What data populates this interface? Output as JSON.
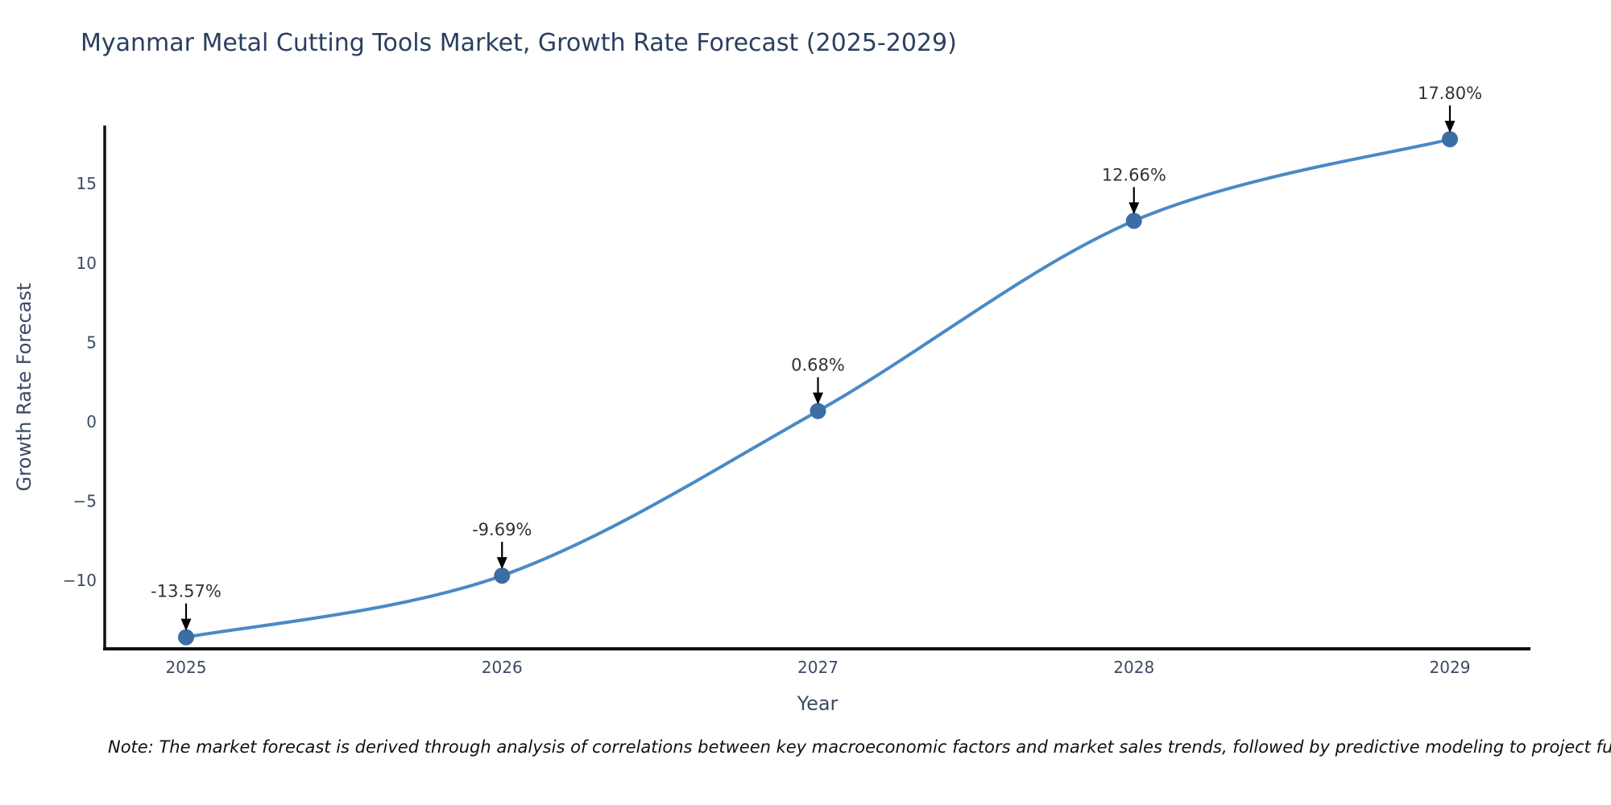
{
  "title": "Myanmar Metal Cutting Tools Market, Growth Rate Forecast (2025-2029)",
  "note": "Note: The market forecast is derived through analysis of correlations between key macroeconomic factors and market sales trends, followed by predictive modeling to project future sales.",
  "chart_data": {
    "type": "line",
    "title": "Myanmar Metal Cutting Tools Market, Growth Rate Forecast (2025-2029)",
    "x": [
      2025,
      2026,
      2027,
      2028,
      2029
    ],
    "values": [
      -13.57,
      -9.69,
      0.68,
      12.66,
      17.8
    ],
    "point_labels": [
      "-13.57%",
      "-9.69%",
      "0.68%",
      "12.66%",
      "17.80%"
    ],
    "xlabel": "Year",
    "ylabel": "Growth Rate Forecast",
    "xticklabels": [
      "2025",
      "2026",
      "2027",
      "2028",
      "2029"
    ],
    "yticks": [
      -10,
      -5,
      0,
      5,
      10,
      15
    ],
    "ylim": [
      -14.3,
      18.6
    ],
    "xlim": [
      2024.74,
      2029.26
    ],
    "grid": false,
    "legend_position": "none",
    "line_smoothing": "spline",
    "colors": {
      "line": "#4a8ac4",
      "marker": "#3a6ea5",
      "annotation_text": "#333333",
      "annotation_arrow": "#000000",
      "axis_line": "#111111",
      "tick_text": "#3b4a63",
      "title_text": "#2a3f5f"
    }
  }
}
